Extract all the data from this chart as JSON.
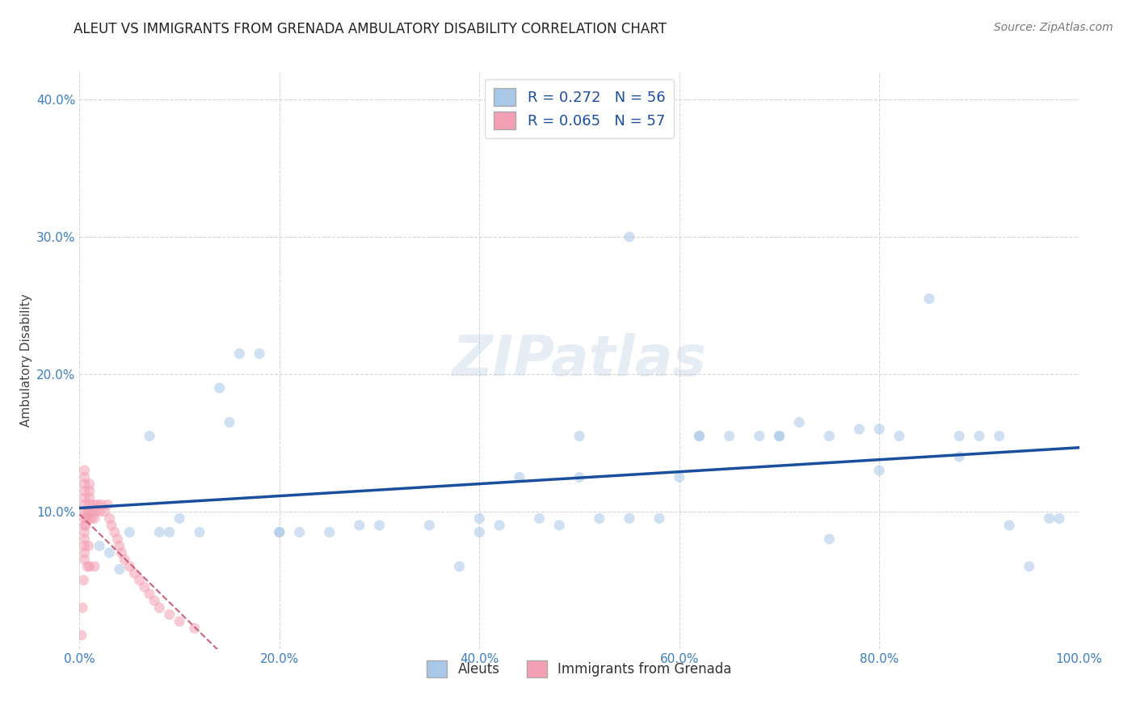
{
  "title": "ALEUT VS IMMIGRANTS FROM GRENADA AMBULATORY DISABILITY CORRELATION CHART",
  "source": "Source: ZipAtlas.com",
  "ylabel": "Ambulatory Disability",
  "watermark": "ZIPatlas",
  "legend_r1": "R = 0.272",
  "legend_n1": "N = 56",
  "legend_r2": "R = 0.065",
  "legend_n2": "N = 57",
  "xlim": [
    0,
    1.0
  ],
  "ylim": [
    0,
    0.42
  ],
  "aleuts_x": [
    0.02,
    0.04,
    0.05,
    0.07,
    0.09,
    0.1,
    0.12,
    0.14,
    0.16,
    0.18,
    0.2,
    0.22,
    0.25,
    0.3,
    0.35,
    0.38,
    0.4,
    0.42,
    0.44,
    0.46,
    0.48,
    0.5,
    0.52,
    0.55,
    0.58,
    0.6,
    0.62,
    0.65,
    0.68,
    0.7,
    0.72,
    0.75,
    0.78,
    0.8,
    0.82,
    0.85,
    0.88,
    0.9,
    0.92,
    0.95,
    0.98,
    0.03,
    0.08,
    0.15,
    0.2,
    0.28,
    0.4,
    0.5,
    0.55,
    0.62,
    0.7,
    0.75,
    0.8,
    0.88,
    0.93,
    0.97
  ],
  "aleuts_y": [
    0.075,
    0.058,
    0.085,
    0.155,
    0.085,
    0.095,
    0.085,
    0.19,
    0.215,
    0.215,
    0.085,
    0.085,
    0.085,
    0.09,
    0.09,
    0.06,
    0.095,
    0.09,
    0.125,
    0.095,
    0.09,
    0.125,
    0.095,
    0.3,
    0.095,
    0.125,
    0.155,
    0.155,
    0.155,
    0.155,
    0.165,
    0.155,
    0.16,
    0.16,
    0.155,
    0.255,
    0.14,
    0.155,
    0.155,
    0.06,
    0.095,
    0.07,
    0.085,
    0.165,
    0.085,
    0.09,
    0.085,
    0.155,
    0.095,
    0.155,
    0.155,
    0.08,
    0.13,
    0.155,
    0.09,
    0.095
  ],
  "grenada_x": [
    0.002,
    0.003,
    0.004,
    0.005,
    0.005,
    0.005,
    0.005,
    0.005,
    0.005,
    0.005,
    0.005,
    0.005,
    0.005,
    0.005,
    0.005,
    0.005,
    0.005,
    0.006,
    0.007,
    0.008,
    0.008,
    0.009,
    0.009,
    0.01,
    0.01,
    0.01,
    0.01,
    0.01,
    0.01,
    0.012,
    0.013,
    0.014,
    0.015,
    0.015,
    0.016,
    0.018,
    0.02,
    0.022,
    0.025,
    0.028,
    0.03,
    0.032,
    0.035,
    0.038,
    0.04,
    0.042,
    0.045,
    0.05,
    0.055,
    0.06,
    0.065,
    0.07,
    0.075,
    0.08,
    0.09,
    0.1,
    0.115
  ],
  "grenada_y": [
    0.01,
    0.03,
    0.05,
    0.065,
    0.075,
    0.085,
    0.09,
    0.095,
    0.1,
    0.105,
    0.11,
    0.115,
    0.12,
    0.125,
    0.13,
    0.08,
    0.07,
    0.09,
    0.095,
    0.1,
    0.06,
    0.095,
    0.075,
    0.1,
    0.105,
    0.11,
    0.115,
    0.12,
    0.06,
    0.095,
    0.1,
    0.105,
    0.095,
    0.06,
    0.1,
    0.105,
    0.1,
    0.105,
    0.1,
    0.105,
    0.095,
    0.09,
    0.085,
    0.08,
    0.075,
    0.07,
    0.065,
    0.06,
    0.055,
    0.05,
    0.045,
    0.04,
    0.035,
    0.03,
    0.025,
    0.02,
    0.015
  ],
  "aleut_color": "#a8c8e8",
  "grenada_color": "#f4a0b4",
  "aleut_line_color": "#1a4fa0",
  "grenada_line_color": "#d06080",
  "background_color": "#ffffff",
  "grid_color": "#cccccc",
  "title_fontsize": 12,
  "axis_label_fontsize": 11,
  "tick_fontsize": 11,
  "marker_size": 90,
  "marker_alpha": 0.55
}
